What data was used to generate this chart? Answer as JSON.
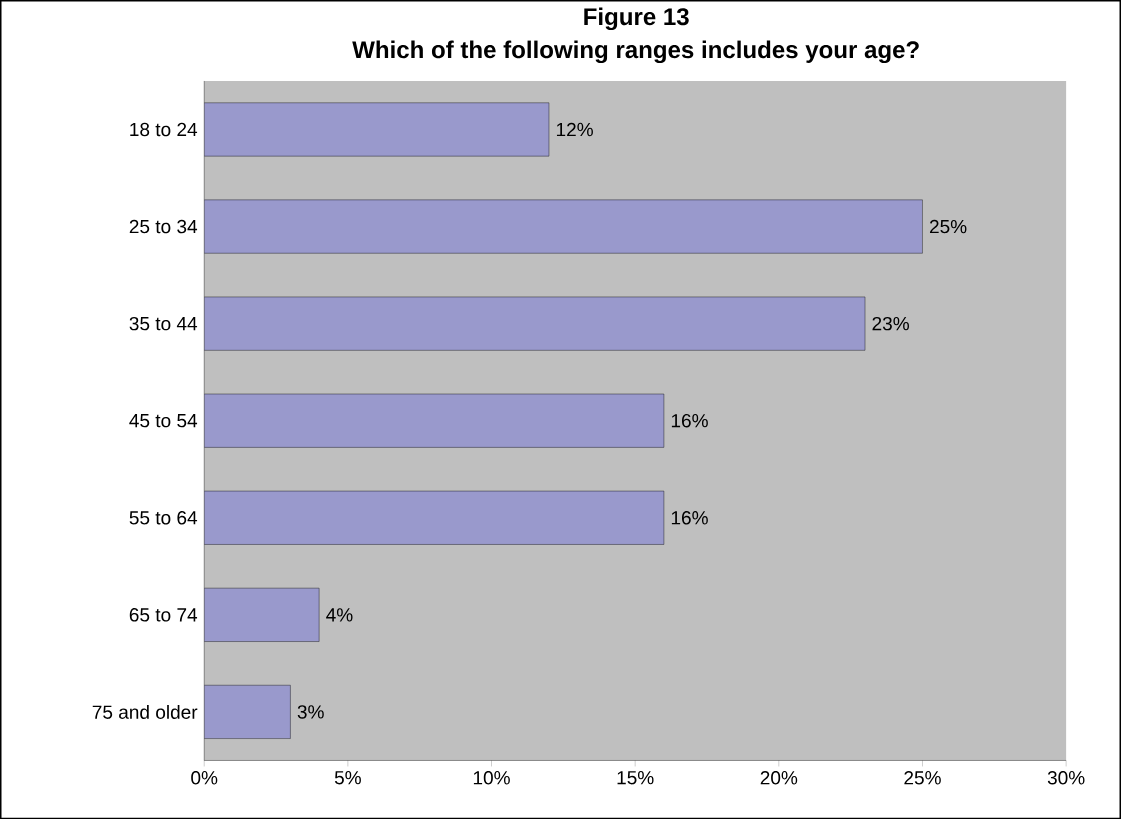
{
  "chart_data": {
    "type": "bar",
    "orientation": "horizontal",
    "title": "Figure 13",
    "subtitle": "Which of the following ranges includes your age?",
    "categories": [
      "18 to 24",
      "25 to 34",
      "35 to 44",
      "45 to 54",
      "55 to 64",
      "65 to 74",
      "75 and older"
    ],
    "values": [
      12,
      25,
      23,
      16,
      16,
      4,
      3
    ],
    "value_labels": [
      "12%",
      "25%",
      "23%",
      "16%",
      "16%",
      "4%",
      "3%"
    ],
    "color": "#9999cc",
    "xlim": [
      0,
      30
    ],
    "xticks": [
      {
        "value": 0,
        "label": "0%"
      },
      {
        "value": 5,
        "label": "5%"
      },
      {
        "value": 10,
        "label": "10%"
      },
      {
        "value": 15,
        "label": "15%"
      },
      {
        "value": 20,
        "label": "20%"
      },
      {
        "value": 25,
        "label": "25%"
      },
      {
        "value": 30,
        "label": "30%"
      }
    ]
  }
}
